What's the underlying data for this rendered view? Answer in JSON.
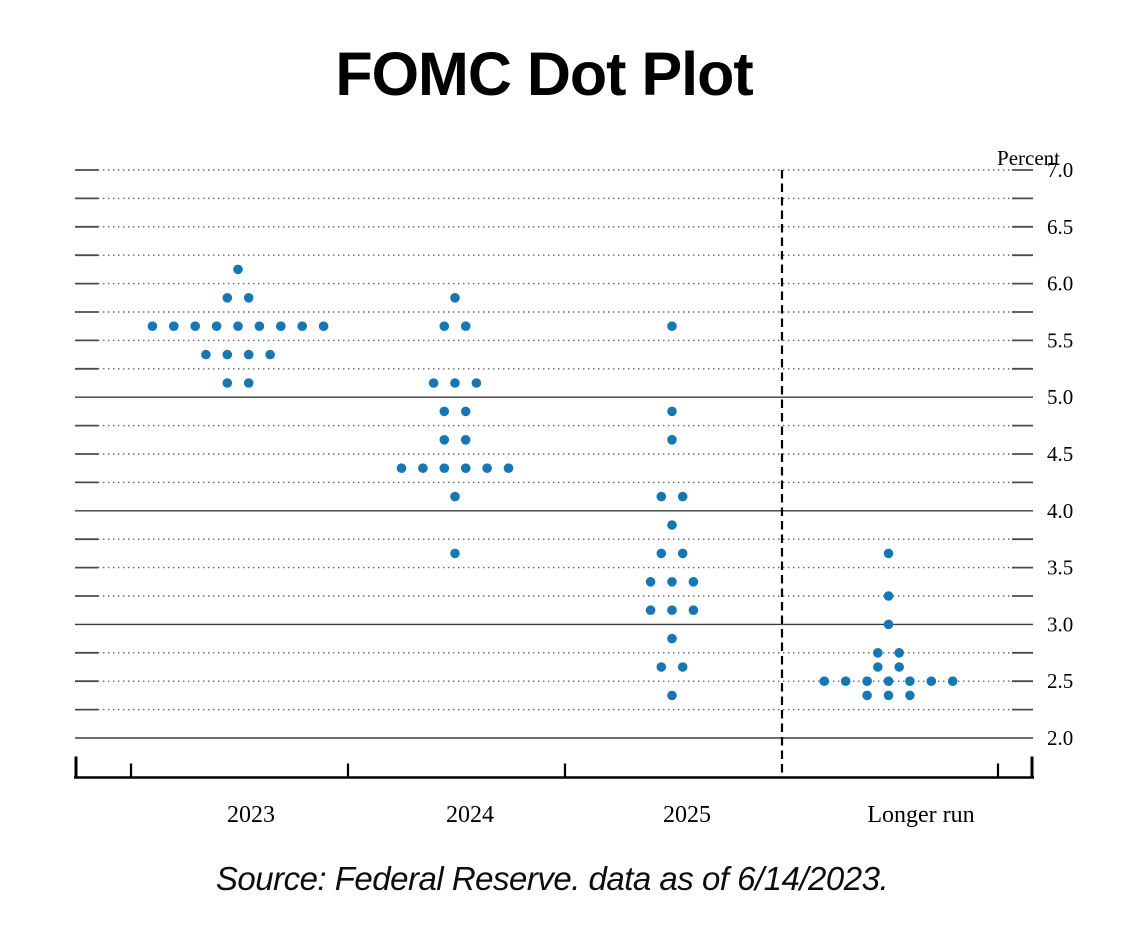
{
  "title": "FOMC Dot Plot",
  "source": "Source: Federal Reserve. data as of 6/14/2023.",
  "chart_data": {
    "type": "scatter",
    "title": "FOMC Dot Plot",
    "ylabel": "Percent",
    "ylim": [
      2.0,
      7.0
    ],
    "grid_step": 0.25,
    "grid_on": true,
    "solid_gridlines": [
      5.0,
      4.0,
      3.0,
      2.0
    ],
    "y_tick_labels": [
      "7.0",
      "6.5",
      "6.0",
      "5.5",
      "5.0",
      "4.5",
      "4.0",
      "3.5",
      "3.0",
      "2.5",
      "2.0"
    ],
    "categories": [
      "2023",
      "2024",
      "2025",
      "Longer run"
    ],
    "divider_after_index": 2,
    "dot_color": "#1777b4",
    "series": [
      {
        "name": "2023",
        "dots": [
          {
            "rate": 6.125,
            "count": 1
          },
          {
            "rate": 5.875,
            "count": 2
          },
          {
            "rate": 5.625,
            "count": 9
          },
          {
            "rate": 5.375,
            "count": 4
          },
          {
            "rate": 5.125,
            "count": 2
          }
        ]
      },
      {
        "name": "2024",
        "dots": [
          {
            "rate": 5.875,
            "count": 1
          },
          {
            "rate": 5.625,
            "count": 2
          },
          {
            "rate": 5.125,
            "count": 3
          },
          {
            "rate": 4.875,
            "count": 2
          },
          {
            "rate": 4.625,
            "count": 2
          },
          {
            "rate": 4.375,
            "count": 6
          },
          {
            "rate": 4.125,
            "count": 1
          },
          {
            "rate": 3.625,
            "count": 1
          }
        ]
      },
      {
        "name": "2025",
        "dots": [
          {
            "rate": 5.625,
            "count": 1
          },
          {
            "rate": 4.875,
            "count": 1
          },
          {
            "rate": 4.625,
            "count": 1
          },
          {
            "rate": 4.125,
            "count": 2
          },
          {
            "rate": 3.875,
            "count": 1
          },
          {
            "rate": 3.625,
            "count": 2
          },
          {
            "rate": 3.375,
            "count": 3
          },
          {
            "rate": 3.125,
            "count": 3
          },
          {
            "rate": 2.875,
            "count": 1
          },
          {
            "rate": 2.625,
            "count": 2
          },
          {
            "rate": 2.375,
            "count": 1
          }
        ]
      },
      {
        "name": "Longer run",
        "dots": [
          {
            "rate": 3.625,
            "count": 1
          },
          {
            "rate": 3.25,
            "count": 1
          },
          {
            "rate": 3.0,
            "count": 1
          },
          {
            "rate": 2.75,
            "count": 2
          },
          {
            "rate": 2.625,
            "count": 2
          },
          {
            "rate": 2.5,
            "count": 7
          },
          {
            "rate": 2.375,
            "count": 3
          }
        ]
      }
    ]
  }
}
